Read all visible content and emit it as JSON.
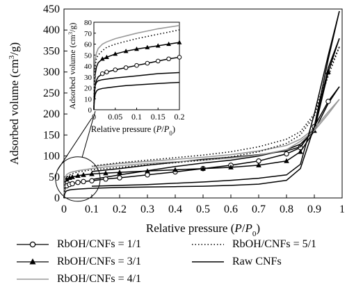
{
  "chart_data": {
    "type": "line",
    "xlabel_text": "Relative pressure",
    "xlabel_var": "P",
    "xlabel_var0": "P",
    "xlabel_sub": "0",
    "ylabel": "Adsorbed volume (cm",
    "ylabel_sup": "3",
    "ylabel_tail": "/g)",
    "xlim": [
      0,
      1
    ],
    "ylim": [
      0,
      450
    ],
    "xticks": [
      "0",
      "0.1",
      "0.2",
      "0.3",
      "0.4",
      "0.5",
      "0.6",
      "0.7",
      "0.8",
      "0.9",
      "1"
    ],
    "yticks": [
      "0",
      "50",
      "100",
      "150",
      "200",
      "250",
      "300",
      "350",
      "400",
      "450"
    ],
    "series": [
      {
        "name": "RbOH/CNFs = 1/1",
        "marker": "open-circle",
        "color": "#000000",
        "adsorption": [
          [
            0,
            0
          ],
          [
            0.002,
            14
          ],
          [
            0.005,
            25
          ],
          [
            0.01,
            29
          ],
          [
            0.02,
            32
          ],
          [
            0.03,
            34
          ],
          [
            0.05,
            37
          ],
          [
            0.07,
            39
          ],
          [
            0.1,
            41
          ],
          [
            0.15,
            45
          ],
          [
            0.2,
            48
          ],
          [
            0.3,
            55
          ],
          [
            0.4,
            62
          ],
          [
            0.5,
            70
          ],
          [
            0.6,
            78
          ],
          [
            0.7,
            88
          ],
          [
            0.8,
            105
          ],
          [
            0.85,
            120
          ],
          [
            0.9,
            170
          ],
          [
            0.95,
            230
          ],
          [
            0.99,
            265
          ]
        ],
        "desorption": [
          [
            0.99,
            265
          ],
          [
            0.95,
            225
          ],
          [
            0.9,
            160
          ],
          [
            0.85,
            128
          ],
          [
            0.8,
            115
          ],
          [
            0.7,
            100
          ],
          [
            0.6,
            90
          ],
          [
            0.5,
            83
          ],
          [
            0.4,
            75
          ],
          [
            0.3,
            65
          ],
          [
            0.2,
            55
          ],
          [
            0.1,
            44
          ]
        ]
      },
      {
        "name": "RbOH/CNFs = 3/1",
        "marker": "filled-triangle",
        "color": "#000000",
        "adsorption": [
          [
            0,
            0
          ],
          [
            0.002,
            20
          ],
          [
            0.005,
            38
          ],
          [
            0.01,
            44
          ],
          [
            0.02,
            48
          ],
          [
            0.03,
            50
          ],
          [
            0.05,
            53
          ],
          [
            0.07,
            55
          ],
          [
            0.1,
            57
          ],
          [
            0.15,
            59
          ],
          [
            0.2,
            61
          ],
          [
            0.3,
            64
          ],
          [
            0.4,
            67
          ],
          [
            0.5,
            70
          ],
          [
            0.6,
            73
          ],
          [
            0.7,
            78
          ],
          [
            0.8,
            88
          ],
          [
            0.85,
            110
          ],
          [
            0.9,
            160
          ],
          [
            0.95,
            300
          ],
          [
            0.99,
            380
          ]
        ],
        "desorption": [
          [
            0.99,
            380
          ],
          [
            0.95,
            310
          ],
          [
            0.9,
            165
          ],
          [
            0.85,
            122
          ],
          [
            0.8,
            112
          ],
          [
            0.7,
            103
          ],
          [
            0.6,
            97
          ],
          [
            0.5,
            92
          ],
          [
            0.4,
            85
          ],
          [
            0.3,
            78
          ],
          [
            0.2,
            70
          ],
          [
            0.1,
            63
          ]
        ]
      },
      {
        "name": "RbOH/CNFs = 4/1",
        "marker": "none",
        "color": "#9a9a9a",
        "adsorption": [
          [
            0,
            0
          ],
          [
            0.002,
            30
          ],
          [
            0.005,
            50
          ],
          [
            0.01,
            56
          ],
          [
            0.02,
            60
          ],
          [
            0.03,
            62
          ],
          [
            0.05,
            65
          ],
          [
            0.07,
            67
          ],
          [
            0.1,
            70
          ],
          [
            0.15,
            74
          ],
          [
            0.2,
            77
          ],
          [
            0.3,
            82
          ],
          [
            0.4,
            86
          ],
          [
            0.5,
            90
          ],
          [
            0.6,
            95
          ],
          [
            0.7,
            102
          ],
          [
            0.8,
            115
          ],
          [
            0.85,
            135
          ],
          [
            0.9,
            160
          ],
          [
            0.95,
            200
          ],
          [
            0.99,
            235
          ]
        ],
        "desorption": [
          [
            0.99,
            235
          ],
          [
            0.95,
            205
          ],
          [
            0.9,
            165
          ],
          [
            0.85,
            140
          ],
          [
            0.8,
            125
          ],
          [
            0.7,
            112
          ],
          [
            0.6,
            103
          ],
          [
            0.5,
            97
          ],
          [
            0.4,
            92
          ],
          [
            0.3,
            87
          ],
          [
            0.2,
            82
          ],
          [
            0.1,
            75
          ]
        ]
      },
      {
        "name": "RbOH/CNFs = 5/1",
        "marker": "dotted",
        "color": "#000000",
        "adsorption": [
          [
            0,
            0
          ],
          [
            0.002,
            26
          ],
          [
            0.005,
            44
          ],
          [
            0.01,
            50
          ],
          [
            0.02,
            55
          ],
          [
            0.03,
            58
          ],
          [
            0.05,
            62
          ],
          [
            0.07,
            64
          ],
          [
            0.1,
            67
          ],
          [
            0.15,
            70
          ],
          [
            0.2,
            73
          ],
          [
            0.3,
            79
          ],
          [
            0.4,
            84
          ],
          [
            0.5,
            90
          ],
          [
            0.6,
            98
          ],
          [
            0.7,
            110
          ],
          [
            0.8,
            130
          ],
          [
            0.85,
            150
          ],
          [
            0.9,
            195
          ],
          [
            0.95,
            290
          ],
          [
            0.99,
            360
          ]
        ],
        "desorption": [
          [
            0.99,
            360
          ],
          [
            0.95,
            300
          ],
          [
            0.9,
            200
          ],
          [
            0.85,
            158
          ],
          [
            0.8,
            140
          ],
          [
            0.7,
            122
          ],
          [
            0.6,
            110
          ],
          [
            0.5,
            102
          ],
          [
            0.4,
            96
          ],
          [
            0.3,
            90
          ],
          [
            0.2,
            84
          ],
          [
            0.1,
            76
          ]
        ]
      },
      {
        "name": "Raw CNFs",
        "marker": "none",
        "color": "#000000",
        "adsorption": [
          [
            0,
            0
          ],
          [
            0.002,
            8
          ],
          [
            0.005,
            14
          ],
          [
            0.01,
            17
          ],
          [
            0.02,
            19
          ],
          [
            0.03,
            20
          ],
          [
            0.05,
            21
          ],
          [
            0.07,
            22
          ],
          [
            0.1,
            23
          ],
          [
            0.15,
            24
          ],
          [
            0.2,
            25
          ],
          [
            0.3,
            26
          ],
          [
            0.4,
            27
          ],
          [
            0.5,
            28
          ],
          [
            0.6,
            30
          ],
          [
            0.7,
            33
          ],
          [
            0.8,
            42
          ],
          [
            0.85,
            70
          ],
          [
            0.9,
            170
          ],
          [
            0.95,
            330
          ],
          [
            0.99,
            445
          ]
        ],
        "desorption": [
          [
            0.99,
            445
          ],
          [
            0.95,
            340
          ],
          [
            0.9,
            200
          ],
          [
            0.85,
            80
          ],
          [
            0.8,
            55
          ],
          [
            0.7,
            47
          ],
          [
            0.6,
            42
          ],
          [
            0.5,
            38
          ],
          [
            0.4,
            35
          ],
          [
            0.3,
            32
          ],
          [
            0.2,
            30
          ],
          [
            0.1,
            28
          ]
        ]
      }
    ],
    "inset": {
      "xlabel_text": "Relative pressure",
      "xlabel_var": "P",
      "xlabel_var0": "P",
      "xlabel_sub": "0",
      "ylabel": "Adsorbed volume (cm",
      "ylabel_sup": "3",
      "ylabel_tail": "/g)",
      "xlim": [
        0,
        0.2
      ],
      "ylim": [
        0,
        80
      ],
      "xticks": [
        "0",
        "0.05",
        "0.1",
        "0.15",
        "0.2"
      ],
      "yticks": [
        "0",
        "10",
        "20",
        "30",
        "40",
        "50",
        "60",
        "70",
        "80"
      ],
      "series": [
        {
          "name": "RbOH/CNFs = 1/1",
          "points": [
            [
              0,
              0
            ],
            [
              0.001,
              12
            ],
            [
              0.003,
              22
            ],
            [
              0.006,
              27
            ],
            [
              0.01,
              30
            ],
            [
              0.02,
              33
            ],
            [
              0.03,
              34.5
            ],
            [
              0.05,
              36.5
            ],
            [
              0.075,
              38.5
            ],
            [
              0.1,
              40.5
            ],
            [
              0.125,
              42.5
            ],
            [
              0.15,
              44.5
            ],
            [
              0.175,
              46.5
            ],
            [
              0.2,
              48
            ]
          ]
        },
        {
          "name": "RbOH/CNFs = 3/1",
          "points": [
            [
              0,
              0
            ],
            [
              0.001,
              18
            ],
            [
              0.003,
              32
            ],
            [
              0.006,
              39
            ],
            [
              0.01,
              43
            ],
            [
              0.02,
              46.5
            ],
            [
              0.03,
              48
            ],
            [
              0.05,
              51
            ],
            [
              0.075,
              53.5
            ],
            [
              0.1,
              55.5
            ],
            [
              0.125,
              57
            ],
            [
              0.15,
              58.5
            ],
            [
              0.175,
              60
            ],
            [
              0.2,
              61.5
            ]
          ]
        },
        {
          "name": "RbOH/CNFs = 4/1",
          "points": [
            [
              0,
              0
            ],
            [
              0.001,
              28
            ],
            [
              0.003,
              45
            ],
            [
              0.006,
              52
            ],
            [
              0.01,
              56
            ],
            [
              0.02,
              60
            ],
            [
              0.03,
              62
            ],
            [
              0.05,
              65
            ],
            [
              0.075,
              67.5
            ],
            [
              0.1,
              70
            ],
            [
              0.125,
              72
            ],
            [
              0.15,
              74
            ],
            [
              0.175,
              75.5
            ],
            [
              0.2,
              77
            ]
          ]
        },
        {
          "name": "RbOH/CNFs = 5/1",
          "points": [
            [
              0,
              0
            ],
            [
              0.001,
              24
            ],
            [
              0.003,
              40
            ],
            [
              0.006,
              47
            ],
            [
              0.01,
              50
            ],
            [
              0.02,
              54
            ],
            [
              0.03,
              57
            ],
            [
              0.05,
              60
            ],
            [
              0.075,
              62.5
            ],
            [
              0.1,
              65
            ],
            [
              0.125,
              67
            ],
            [
              0.15,
              69
            ],
            [
              0.175,
              71
            ],
            [
              0.2,
              73
            ]
          ]
        },
        {
          "name": "Raw CNFs",
          "points": [
            [
              0,
              0
            ],
            [
              0.001,
              8
            ],
            [
              0.003,
              14
            ],
            [
              0.006,
              17
            ],
            [
              0.01,
              18.5
            ],
            [
              0.02,
              19.5
            ],
            [
              0.03,
              20
            ],
            [
              0.05,
              21
            ],
            [
              0.075,
              22
            ],
            [
              0.1,
              22.7
            ],
            [
              0.125,
              23.3
            ],
            [
              0.15,
              24
            ],
            [
              0.175,
              24.5
            ],
            [
              0.2,
              25
            ]
          ]
        },
        {
          "name": "Raw CNFs (upper)",
          "points": [
            [
              0,
              0
            ],
            [
              0.001,
              14
            ],
            [
              0.003,
              22
            ],
            [
              0.006,
              25
            ],
            [
              0.01,
              26.5
            ],
            [
              0.02,
              27.5
            ],
            [
              0.03,
              28
            ],
            [
              0.05,
              29
            ],
            [
              0.075,
              30
            ],
            [
              0.1,
              31
            ],
            [
              0.125,
              32
            ],
            [
              0.15,
              33
            ],
            [
              0.175,
              33.5
            ],
            [
              0.2,
              34
            ]
          ]
        }
      ]
    }
  },
  "legend": [
    {
      "label": "RbOH/CNFs = 1/1",
      "style": "open-circle"
    },
    {
      "label": "RbOH/CNFs = 5/1",
      "style": "dotted"
    },
    {
      "label": "RbOH/CNFs = 3/1",
      "style": "filled-triangle"
    },
    {
      "label": "Raw CNFs",
      "style": "solid"
    },
    {
      "label": "RbOH/CNFs = 4/1",
      "style": "gray"
    }
  ]
}
